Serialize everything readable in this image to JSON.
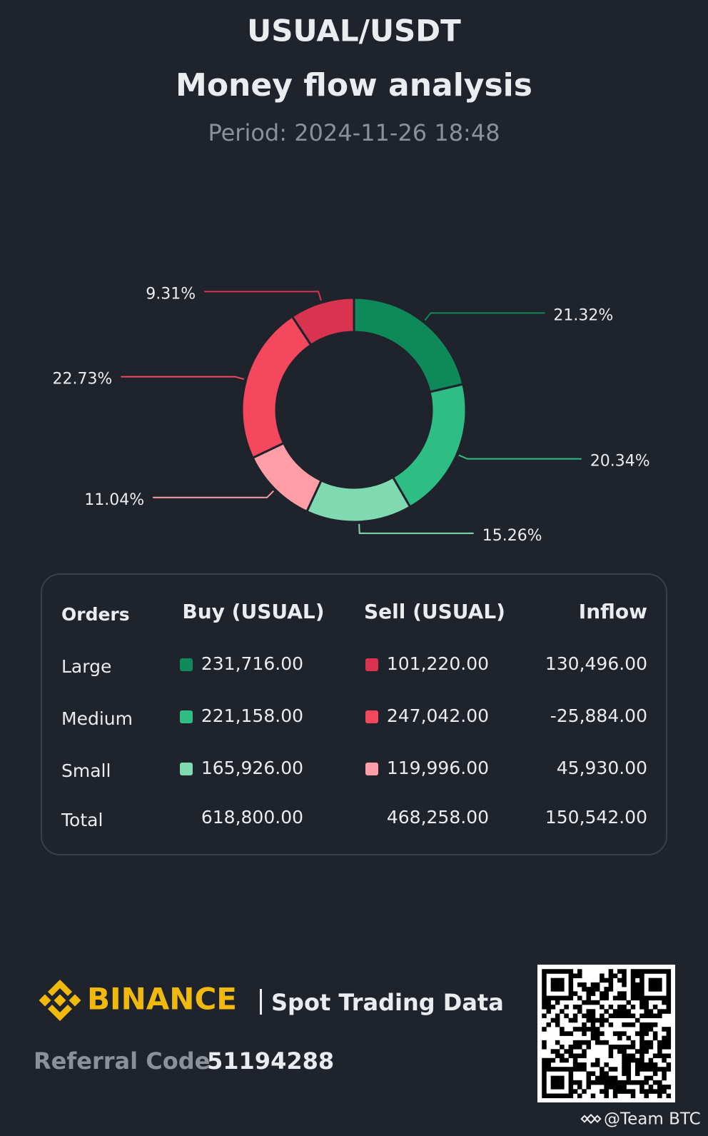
{
  "header": {
    "title": "USUAL/USDT",
    "subtitle": "Money flow analysis",
    "period": "Period: 2024-11-26 18:48"
  },
  "chart_data": {
    "type": "donut",
    "values": [
      21.32,
      20.34,
      15.26,
      11.04,
      22.73,
      9.31
    ],
    "value_labels": [
      "21.32%",
      "20.34%",
      "15.26%",
      "11.04%",
      "22.73%",
      "9.31%"
    ],
    "colors": [
      "#0e8a5a",
      "#2ebd85",
      "#7fd9b1",
      "#ff9ea7",
      "#f5485f",
      "#d9344f"
    ]
  },
  "table": {
    "header": [
      "Orders",
      "Buy (USUAL)",
      "Sell (USUAL)",
      "Inflow"
    ],
    "rows": [
      [
        "Large",
        "231,716.00",
        "101,220.00",
        "130,496.00"
      ],
      [
        "Medium",
        "221,158.00",
        "247,042.00",
        "-25,884.00"
      ],
      [
        "Small",
        "165,926.00",
        "119,996.00",
        "45,930.00"
      ],
      [
        "Total",
        "618,800.00",
        "468,258.00",
        "150,542.00"
      ]
    ]
  },
  "footer": {
    "brand": "BINANCE",
    "tagline": "Spot Trading Data",
    "referral_label": "Referral Code",
    "referral_code": "51194288",
    "watermark": "@Team BTC"
  }
}
